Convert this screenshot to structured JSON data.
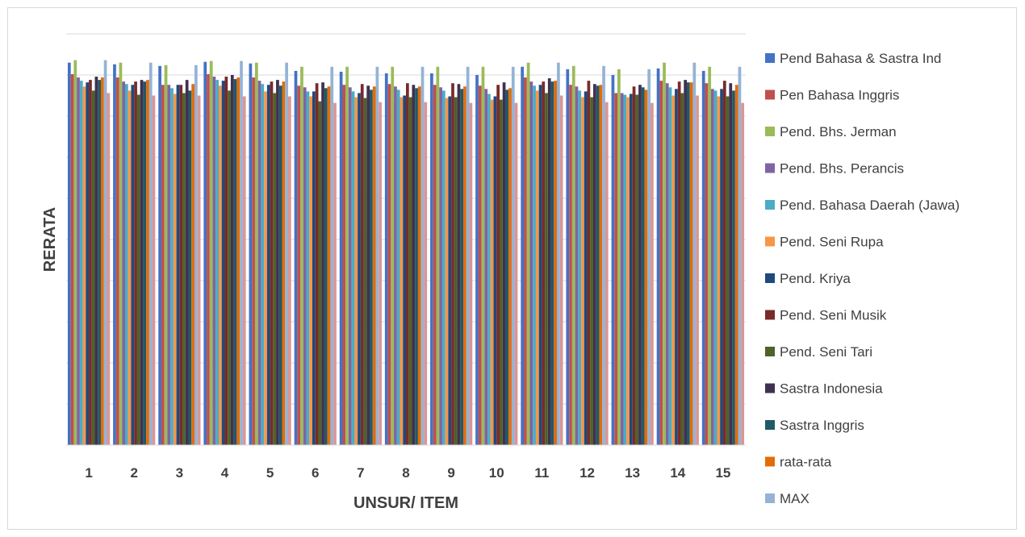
{
  "chart_data": {
    "type": "bar",
    "title": "",
    "xlabel": "UNSUR/ ITEM",
    "ylabel": "RERATA",
    "ylim": [
      0,
      100
    ],
    "grid": true,
    "legend_position": "right",
    "categories": [
      "1",
      "2",
      "3",
      "4",
      "5",
      "6",
      "7",
      "8",
      "9",
      "10",
      "11",
      "12",
      "13",
      "14",
      "15"
    ],
    "series": [
      {
        "name": "Pend Bahasa & Sastra Ind",
        "color": "#4472C4",
        "values": [
          93.0,
          92.6,
          92.2,
          93.2,
          92.8,
          91.0,
          90.8,
          90.4,
          90.4,
          90.0,
          92.0,
          91.4,
          90.0,
          91.6,
          91.0
        ]
      },
      {
        "name": "Pen Bahasa Inggris",
        "color": "#C0504D",
        "values": [
          90.2,
          89.4,
          87.6,
          90.2,
          89.4,
          87.4,
          87.6,
          87.8,
          87.6,
          87.4,
          89.4,
          87.6,
          85.6,
          88.6,
          88.0
        ]
      },
      {
        "name": "Pend. Bhs. Jerman",
        "color": "#9BBB59",
        "values": [
          93.6,
          93.0,
          92.4,
          93.4,
          93.0,
          92.0,
          92.0,
          92.0,
          92.0,
          92.0,
          93.0,
          92.2,
          91.4,
          93.0,
          92.0
        ]
      },
      {
        "name": "Pend. Bhs. Perancis",
        "color": "#8064A2",
        "values": [
          89.4,
          88.4,
          87.6,
          89.6,
          88.6,
          87.0,
          87.0,
          87.2,
          87.0,
          86.6,
          88.4,
          87.2,
          85.6,
          88.0,
          86.6
        ]
      },
      {
        "name": "Pend. Bahasa Daerah (Jawa)",
        "color": "#4BACC6",
        "values": [
          88.6,
          87.8,
          86.8,
          88.8,
          87.8,
          86.0,
          86.0,
          86.4,
          86.2,
          85.4,
          87.4,
          86.2,
          85.2,
          87.0,
          86.2
        ]
      },
      {
        "name": "Pend. Seni Rupa",
        "color": "#F79646",
        "values": [
          87.2,
          86.2,
          85.4,
          87.4,
          86.0,
          84.8,
          84.6,
          84.6,
          84.4,
          84.0,
          86.2,
          84.6,
          84.6,
          85.0,
          84.8
        ]
      },
      {
        "name": "Pend. Kriya",
        "color": "#1F497D",
        "values": [
          88.2,
          87.6,
          87.6,
          88.6,
          87.6,
          86.0,
          85.6,
          85.0,
          84.8,
          84.8,
          87.6,
          86.0,
          85.4,
          86.6,
          86.6
        ]
      },
      {
        "name": "Pend. Seni Musik",
        "color": "#772C2A",
        "values": [
          88.8,
          88.4,
          87.6,
          89.6,
          88.4,
          88.0,
          87.8,
          88.0,
          88.0,
          87.6,
          88.4,
          88.6,
          87.2,
          88.4,
          88.6
        ]
      },
      {
        "name": "Pend. Seni Tari",
        "color": "#4F6228",
        "values": [
          86.2,
          85.2,
          85.6,
          86.2,
          85.6,
          83.6,
          84.4,
          84.6,
          84.6,
          84.0,
          85.6,
          84.6,
          85.2,
          85.6,
          84.8
        ]
      },
      {
        "name": "Sastra Indonesia",
        "color": "#3F3151",
        "values": [
          89.6,
          88.8,
          88.8,
          90.0,
          88.8,
          88.2,
          87.4,
          87.6,
          87.8,
          88.2,
          89.2,
          87.8,
          87.6,
          88.8,
          88.0
        ]
      },
      {
        "name": "Sastra Inggris",
        "color": "#215968",
        "values": [
          88.8,
          88.4,
          86.2,
          89.0,
          87.4,
          86.8,
          86.4,
          86.8,
          86.6,
          86.4,
          88.4,
          87.4,
          87.0,
          88.2,
          86.2
        ]
      },
      {
        "name": "rata-rata",
        "color": "#E36C09",
        "values": [
          89.4,
          88.8,
          87.8,
          89.4,
          88.4,
          87.2,
          87.2,
          87.2,
          87.2,
          86.8,
          88.6,
          87.6,
          86.4,
          88.2,
          87.6
        ]
      },
      {
        "name": "MAX",
        "color": "#95B3D7",
        "values": [
          93.6,
          93.0,
          92.4,
          93.4,
          93.0,
          92.0,
          92.0,
          92.0,
          92.0,
          92.0,
          93.0,
          92.2,
          91.4,
          93.0,
          92.0
        ]
      },
      {
        "name": "",
        "color": "#DA9694",
        "values": [
          85.6,
          85.0,
          85.0,
          84.8,
          84.8,
          83.2,
          83.4,
          83.4,
          83.2,
          83.2,
          85.0,
          83.4,
          83.2,
          85.0,
          83.2
        ]
      }
    ]
  }
}
